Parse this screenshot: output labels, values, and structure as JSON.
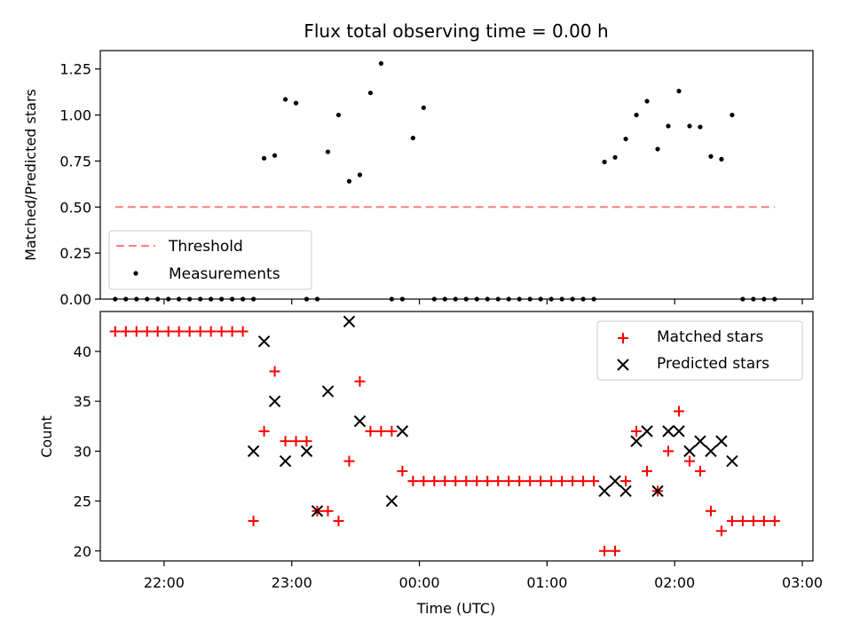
{
  "chart_data": [
    {
      "type": "scatter",
      "title": "Flux total observing time = 0.00 h",
      "xlabel": "",
      "ylabel": "Matched/Predicted stars",
      "xlim": [
        "21:30",
        "03:05"
      ],
      "ylim": [
        0,
        1.35
      ],
      "xticks": [
        "22:00",
        "23:00",
        "00:00",
        "01:00",
        "02:00",
        "03:00"
      ],
      "yticks": [
        "0.00",
        "0.25",
        "0.50",
        "0.75",
        "1.00",
        "1.25"
      ],
      "ytick_values": [
        0,
        0.25,
        0.5,
        0.75,
        1.0,
        1.25
      ],
      "legend_position": "lower-left",
      "colors": {
        "threshold": "#ff7f7f",
        "measurements": "#000000"
      },
      "series": [
        {
          "name": "Threshold",
          "style": "dashed-line",
          "x": [
            "21:37",
            "02:47"
          ],
          "y": [
            0.5,
            0.5
          ]
        },
        {
          "name": "Measurements",
          "style": "dot",
          "x": [
            "21:37",
            "21:42",
            "21:47",
            "21:52",
            "21:57",
            "22:02",
            "22:07",
            "22:12",
            "22:17",
            "22:22",
            "22:27",
            "22:32",
            "22:37",
            "22:42",
            "22:47",
            "22:52",
            "22:57",
            "23:02",
            "23:07",
            "23:12",
            "23:17",
            "23:22",
            "23:27",
            "23:32",
            "23:37",
            "23:42",
            "23:47",
            "23:52",
            "23:57",
            "00:02",
            "00:07",
            "00:12",
            "00:17",
            "00:22",
            "00:27",
            "00:32",
            "00:37",
            "00:42",
            "00:47",
            "00:52",
            "00:57",
            "01:02",
            "01:07",
            "01:12",
            "01:17",
            "01:22",
            "01:27",
            "01:32",
            "01:37",
            "01:42",
            "01:47",
            "01:52",
            "01:57",
            "02:02",
            "02:07",
            "02:12",
            "02:17",
            "02:22",
            "02:27",
            "02:32",
            "02:37",
            "02:42",
            "02:47"
          ],
          "y": [
            0,
            0,
            0,
            0,
            0,
            0,
            0,
            0,
            0,
            0,
            0,
            0,
            0,
            0,
            0.765,
            0.78,
            1.085,
            1.065,
            0,
            0,
            0.8,
            1.0,
            0.64,
            0.675,
            1.12,
            1.28,
            0,
            0,
            0.875,
            1.04,
            0,
            0,
            0,
            0,
            0,
            0,
            0,
            0,
            0,
            0,
            0,
            0,
            0,
            0,
            0,
            0,
            0.745,
            0.77,
            0.87,
            1.0,
            1.075,
            0.815,
            0.94,
            1.13,
            0.94,
            0.935,
            0.775,
            0.76,
            1.0,
            0,
            0,
            0,
            0
          ]
        }
      ]
    },
    {
      "type": "scatter",
      "title": "",
      "xlabel": "Time (UTC)",
      "ylabel": "Count",
      "xlim": [
        "21:30",
        "03:05"
      ],
      "ylim": [
        19,
        44
      ],
      "xticks": [
        "22:00",
        "23:00",
        "00:00",
        "01:00",
        "02:00",
        "03:00"
      ],
      "yticks": [
        "20",
        "25",
        "30",
        "35",
        "40"
      ],
      "ytick_values": [
        20,
        25,
        30,
        35,
        40
      ],
      "legend_position": "upper-right",
      "colors": {
        "matched": "#ff0000",
        "predicted": "#000000"
      },
      "series": [
        {
          "name": "Matched stars",
          "marker": "+",
          "x": [
            "21:37",
            "21:42",
            "21:47",
            "21:52",
            "21:57",
            "22:02",
            "22:07",
            "22:12",
            "22:17",
            "22:22",
            "22:27",
            "22:32",
            "22:37",
            "22:42",
            "22:47",
            "22:52",
            "22:57",
            "23:02",
            "23:07",
            "23:12",
            "23:17",
            "23:22",
            "23:27",
            "23:32",
            "23:37",
            "23:42",
            "23:47",
            "23:52",
            "23:57",
            "00:02",
            "00:07",
            "00:12",
            "00:17",
            "00:22",
            "00:27",
            "00:32",
            "00:37",
            "00:42",
            "00:47",
            "00:52",
            "00:57",
            "01:02",
            "01:07",
            "01:12",
            "01:17",
            "01:22",
            "01:27",
            "01:32",
            "01:37",
            "01:42",
            "01:47",
            "01:52",
            "01:57",
            "02:02",
            "02:07",
            "02:12",
            "02:17",
            "02:22",
            "02:27",
            "02:32",
            "02:37",
            "02:42",
            "02:47"
          ],
          "y": [
            42,
            42,
            42,
            42,
            42,
            42,
            42,
            42,
            42,
            42,
            42,
            42,
            42,
            23,
            32,
            38,
            31,
            31,
            31,
            24,
            24,
            23,
            29,
            37,
            32,
            32,
            32,
            28,
            27,
            27,
            27,
            27,
            27,
            27,
            27,
            27,
            27,
            27,
            27,
            27,
            27,
            27,
            27,
            27,
            27,
            27,
            20,
            20,
            27,
            32,
            28,
            26,
            30,
            34,
            29,
            28,
            24,
            22,
            23,
            23,
            23,
            23,
            23
          ]
        },
        {
          "name": "Predicted stars",
          "marker": "x",
          "x": [
            "22:42",
            "22:47",
            "22:52",
            "22:57",
            "23:07",
            "23:12",
            "23:17",
            "23:27",
            "23:32",
            "23:47",
            "23:52",
            "01:27",
            "01:32",
            "01:37",
            "01:42",
            "01:47",
            "01:52",
            "01:57",
            "02:02",
            "02:07",
            "02:12",
            "02:17",
            "02:22",
            "02:27"
          ],
          "y": [
            30,
            41,
            35,
            29,
            30,
            24,
            36,
            43,
            33,
            25,
            32,
            26,
            27,
            26,
            31,
            32,
            26,
            32,
            32,
            30,
            31,
            30,
            31,
            29
          ]
        }
      ]
    }
  ]
}
